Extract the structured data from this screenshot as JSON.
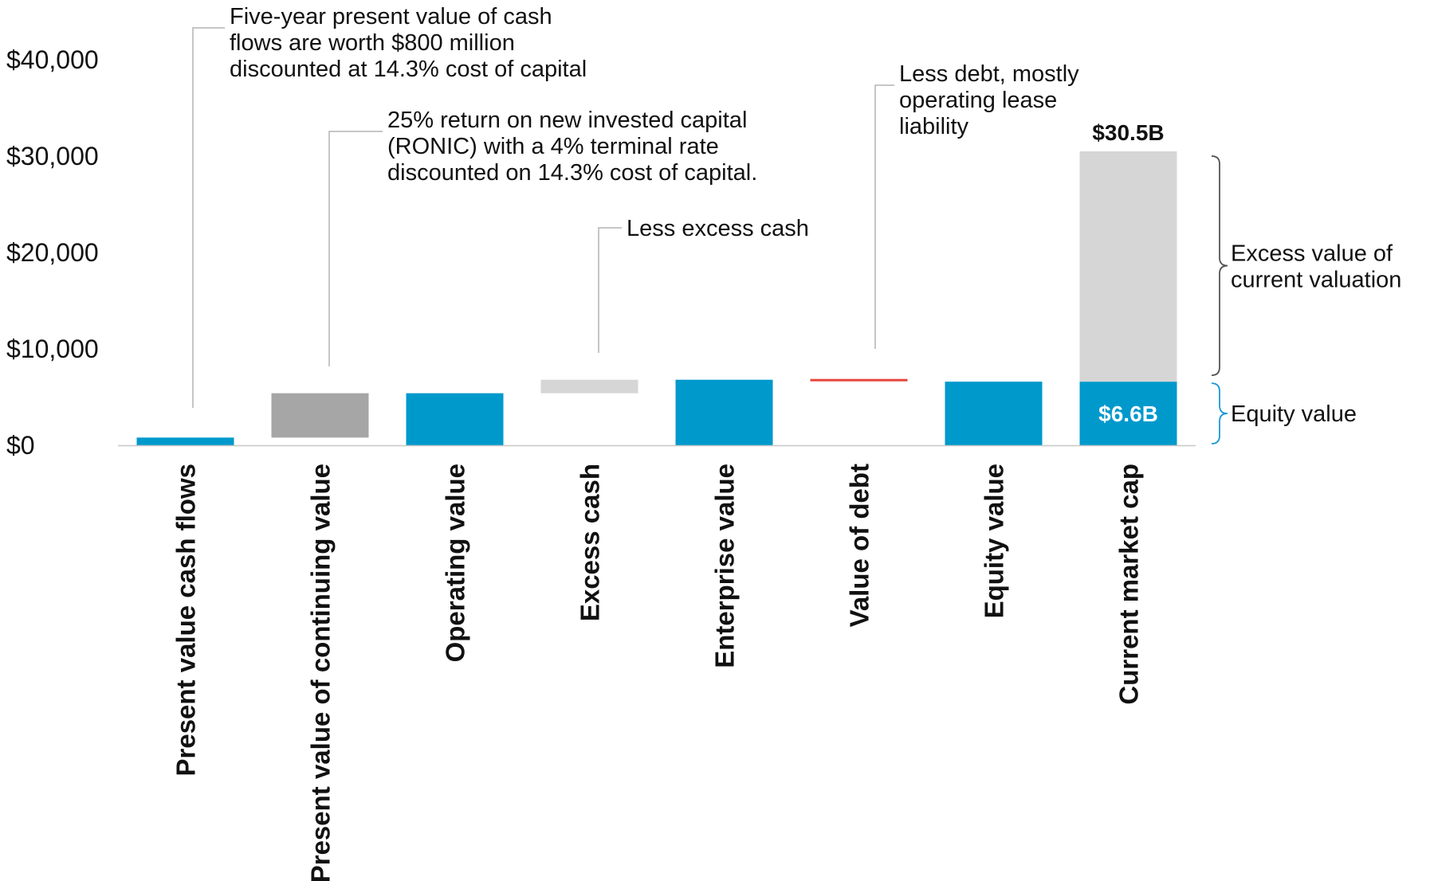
{
  "chart_data": {
    "type": "bar",
    "subtype": "waterfall",
    "title": "",
    "xlabel": "",
    "ylabel": "",
    "ylim": [
      0,
      40000
    ],
    "yticks": [
      0,
      10000,
      20000,
      30000,
      40000
    ],
    "ytick_labels": [
      "$0",
      "$10,000",
      "$20,000",
      "$30,000",
      "$40,000"
    ],
    "grid": false,
    "categories": [
      "Present value cash flows",
      "Present value of continuing value",
      "Operating value",
      "Excess cash",
      "Enterprise value",
      "Value of debt",
      "Equity value",
      "Current market cap"
    ],
    "bars": [
      {
        "category": "Present value cash flows",
        "base": 0,
        "top": 800,
        "color": "#0099cc"
      },
      {
        "category": "Present value of continuing value",
        "base": 800,
        "top": 5400,
        "color": "#a6a6a6"
      },
      {
        "category": "Operating value",
        "base": 0,
        "top": 5400,
        "color": "#0099cc"
      },
      {
        "category": "Excess cash",
        "base": 5400,
        "top": 6800,
        "color": "#d6d6d6"
      },
      {
        "category": "Enterprise value",
        "base": 0,
        "top": 6800,
        "color": "#0099cc"
      },
      {
        "category": "Value of debt",
        "base": 6600,
        "top": 6800,
        "color": "#e8453c"
      },
      {
        "category": "Equity value",
        "base": 0,
        "top": 6600,
        "color": "#0099cc"
      },
      {
        "category": "Current market cap",
        "base": 0,
        "top": 6600,
        "color": "#0099cc"
      },
      {
        "category": "Current market cap",
        "base": 6600,
        "top": 30500,
        "color": "#d6d6d6"
      }
    ],
    "value_labels": {
      "market_cap_total": "$30.5B",
      "equity_value": "$6.6B"
    },
    "annotations": [
      {
        "category": "Present value cash flows",
        "lines": [
          "Five-year present value of cash",
          "flows are worth $800 million",
          "discounted at 14.3% cost of capital"
        ]
      },
      {
        "category": "Present value of continuing value",
        "lines": [
          "25% return on new invested capital",
          "(RONIC) with a 4% terminal rate",
          "discounted on 14.3% cost of capital."
        ]
      },
      {
        "category": "Excess cash",
        "lines": [
          "Less excess cash"
        ]
      },
      {
        "category": "Value of debt",
        "lines": [
          "Less debt, mostly",
          "operating lease",
          "liability"
        ]
      }
    ],
    "brackets": [
      {
        "label_lines": [
          "Excess value of",
          "current valuation"
        ],
        "from": 6600,
        "to": 30500,
        "color": "#111111"
      },
      {
        "label_lines": [
          "Equity value"
        ],
        "from": 0,
        "to": 6600,
        "color": "#1a9ad6"
      }
    ]
  }
}
